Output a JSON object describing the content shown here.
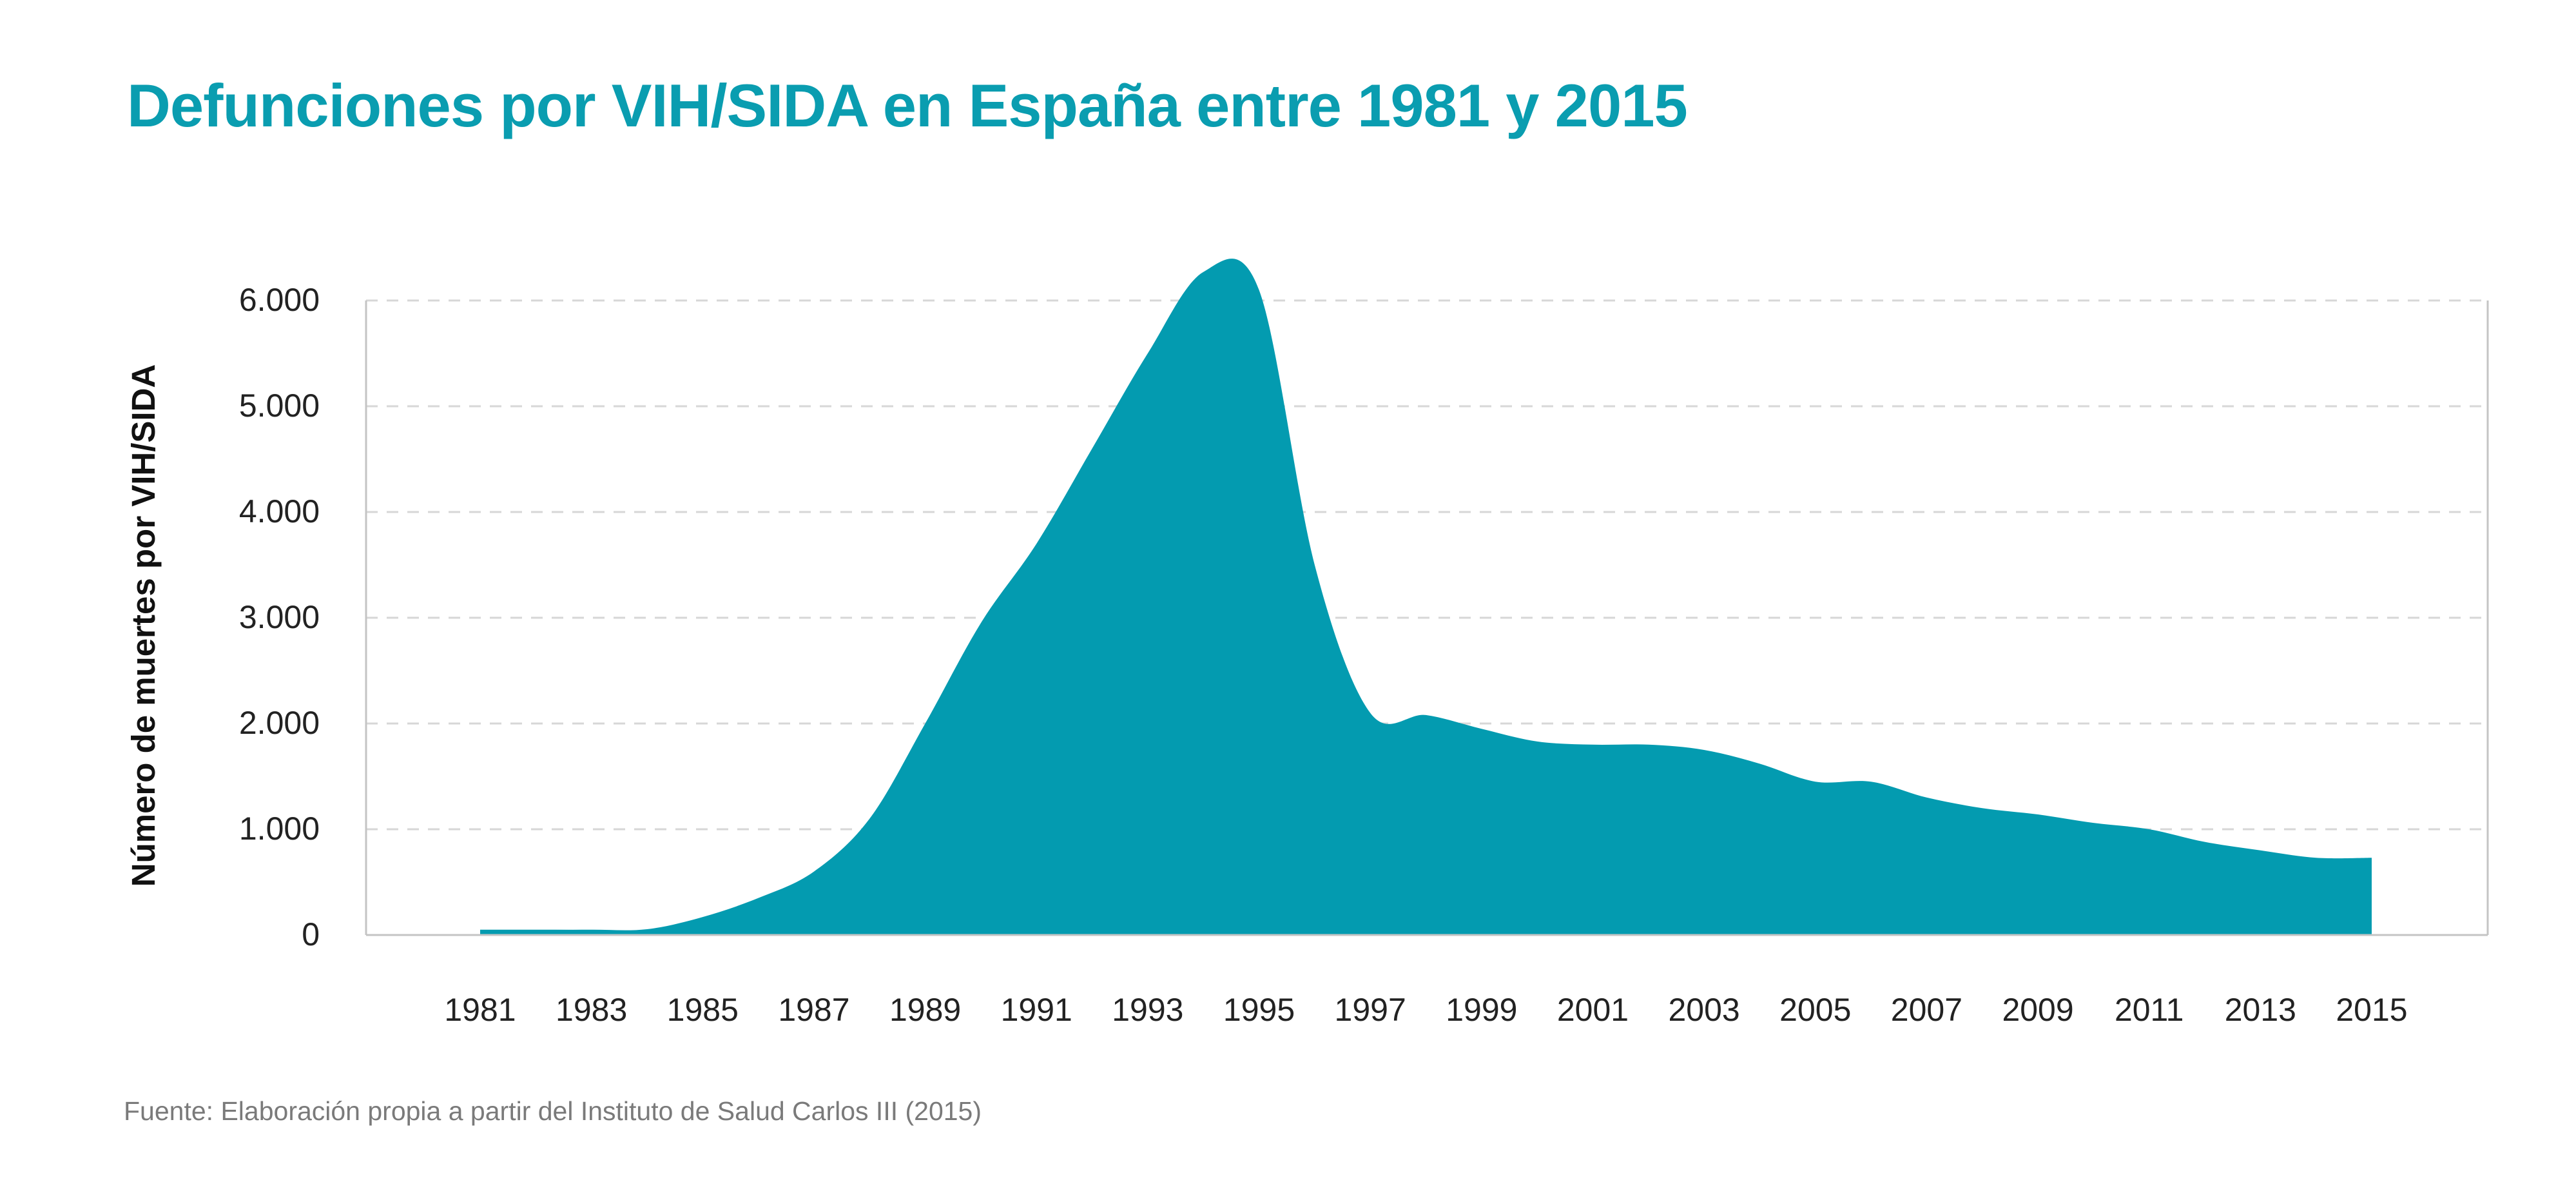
{
  "title": "Defunciones por VIH/SIDA en España entre 1981 y 2015",
  "source": {
    "label": "Fuente:",
    "text": "Elaboración propia a partir del Instituto de Salud Carlos III (2015)"
  },
  "colors": {
    "accent": "#0a9db0",
    "area": "#039bb0",
    "text": "#222222",
    "muted": "#7a7a7a",
    "grid": "#d7d7d7",
    "axis": "#c4c4c4"
  },
  "chart_data": {
    "type": "area",
    "title": "Defunciones por VIH/SIDA en España entre 1981 y 2015",
    "xlabel": "",
    "ylabel": "Número de muertes por VIH/SIDA",
    "ylim": [
      0,
      6000
    ],
    "xlim": [
      1981,
      2015
    ],
    "yticks": [
      {
        "value": 0,
        "label": "0"
      },
      {
        "value": 1000,
        "label": "1.000"
      },
      {
        "value": 2000,
        "label": "2.000"
      },
      {
        "value": 3000,
        "label": "3.000"
      },
      {
        "value": 4000,
        "label": "4.000"
      },
      {
        "value": 5000,
        "label": "5.000"
      },
      {
        "value": 6000,
        "label": "6.000"
      }
    ],
    "xticks": [
      "1981",
      "1983",
      "1985",
      "1987",
      "1989",
      "1991",
      "1993",
      "1995",
      "1997",
      "1999",
      "2001",
      "2003",
      "2005",
      "2007",
      "2009",
      "2011",
      "2013",
      "2015"
    ],
    "grid": true,
    "legend": "none",
    "x": [
      1981,
      1982,
      1983,
      1984,
      1985,
      1986,
      1987,
      1988,
      1989,
      1990,
      1991,
      1992,
      1993,
      1994,
      1995,
      1996,
      1997,
      1998,
      1999,
      2000,
      2001,
      2002,
      2003,
      2004,
      2005,
      2006,
      2007,
      2008,
      2009,
      2010,
      2011,
      2012,
      2013,
      2014,
      2015
    ],
    "values": [
      50,
      50,
      50,
      55,
      170,
      350,
      600,
      1100,
      2000,
      2950,
      3700,
      4600,
      5500,
      6270,
      6100,
      3500,
      2100,
      2080,
      1950,
      1830,
      1800,
      1800,
      1750,
      1620,
      1450,
      1450,
      1300,
      1200,
      1140,
      1060,
      1000,
      880,
      800,
      730,
      730
    ]
  }
}
